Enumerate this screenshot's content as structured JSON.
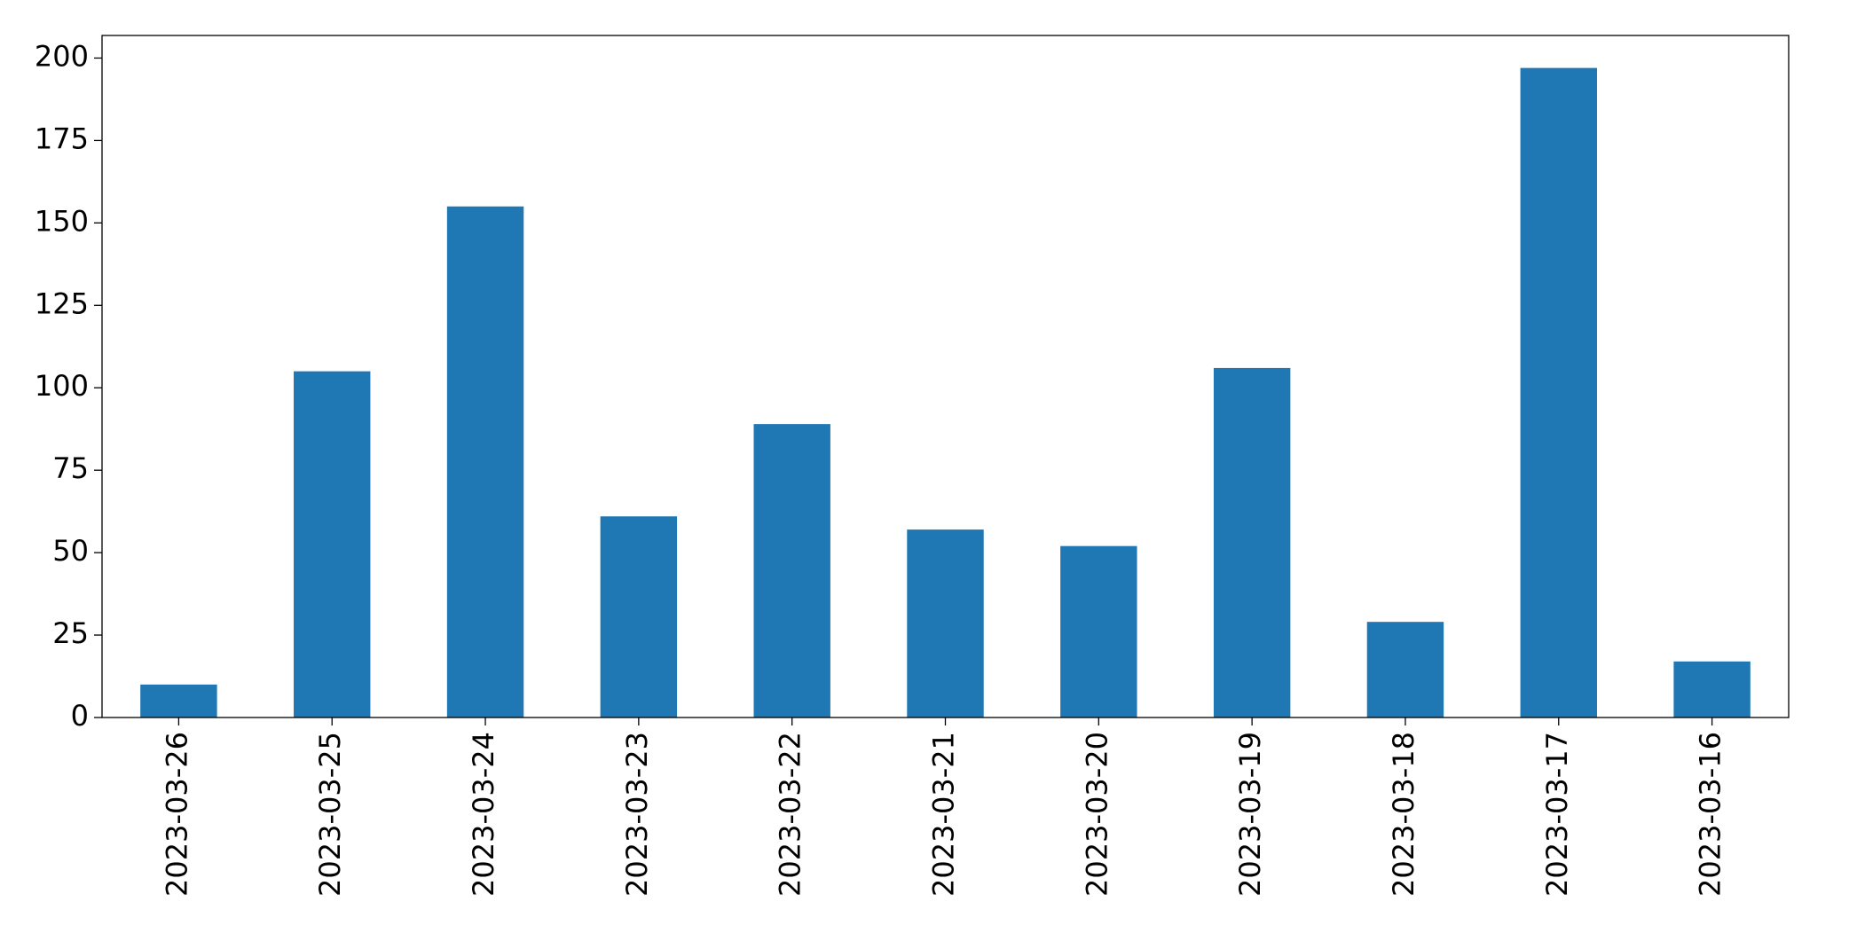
{
  "chart_data": {
    "type": "bar",
    "categories": [
      "2023-03-26",
      "2023-03-25",
      "2023-03-24",
      "2023-03-23",
      "2023-03-22",
      "2023-03-21",
      "2023-03-20",
      "2023-03-19",
      "2023-03-18",
      "2023-03-17",
      "2023-03-16"
    ],
    "values": [
      10,
      105,
      155,
      61,
      89,
      57,
      52,
      106,
      29,
      197,
      17
    ],
    "color": "#1f77b4",
    "ylim": [
      0,
      206.85
    ],
    "yticks": [
      0,
      25,
      50,
      75,
      100,
      125,
      150,
      175,
      200
    ],
    "grid": false
  }
}
